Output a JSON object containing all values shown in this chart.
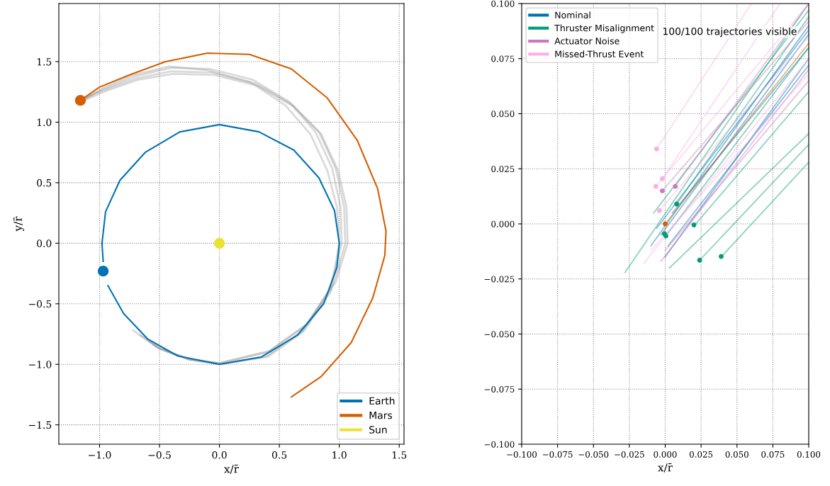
{
  "chart_data": [
    {
      "type": "line",
      "xlabel": "x/r̄",
      "ylabel": "y/r̄",
      "grid": true,
      "legend": "bottom right",
      "xlim": [
        -1.34,
        1.54
      ],
      "ylim": [
        -1.66,
        1.98
      ],
      "xticks": [
        {
          "value": -1.0,
          "label": "−1.0"
        },
        {
          "value": -0.5,
          "label": "−0.5"
        },
        {
          "value": 0.0,
          "label": "0.0"
        },
        {
          "value": 0.5,
          "label": "0.5"
        },
        {
          "value": 1.0,
          "label": "1.0"
        },
        {
          "value": 1.5,
          "label": "1.5"
        }
      ],
      "yticks": [
        {
          "value": -1.5,
          "label": "−1.5"
        },
        {
          "value": -1.0,
          "label": "−1.0"
        },
        {
          "value": -0.5,
          "label": "−0.5"
        },
        {
          "value": 0.0,
          "label": "0.0"
        },
        {
          "value": 0.5,
          "label": "0.5"
        },
        {
          "value": 1.0,
          "label": "1.0"
        },
        {
          "value": 1.5,
          "label": "1.5"
        }
      ],
      "series": [
        {
          "color": "#949494",
          "x": [
            -0.72,
            -0.5,
            -0.25,
            0.0,
            0.4,
            0.7,
            0.92,
            1.02,
            1.01,
            0.94,
            0.8,
            0.58,
            0.28,
            -0.08,
            -0.4,
            -0.7,
            -0.95,
            -1.14
          ],
          "values": [
            -0.72,
            -0.87,
            -0.96,
            -1.0,
            -0.93,
            -0.72,
            -0.38,
            0.0,
            0.3,
            0.62,
            0.92,
            1.17,
            1.35,
            1.44,
            1.45,
            1.38,
            1.28,
            1.19
          ]
        },
        {
          "color": "#949494",
          "x": [
            -0.6,
            -0.5,
            -0.25,
            0.0,
            0.4,
            0.72,
            0.95,
            1.05,
            1.04,
            0.97,
            0.83,
            0.6,
            0.3,
            -0.06,
            -0.4,
            -0.7,
            -0.95,
            -1.12
          ],
          "values": [
            -0.8,
            -0.87,
            -0.96,
            -0.99,
            -0.9,
            -0.68,
            -0.34,
            0.0,
            0.3,
            0.62,
            0.92,
            1.15,
            1.32,
            1.41,
            1.42,
            1.36,
            1.27,
            1.2
          ]
        },
        {
          "color": "#949494",
          "x": [
            -0.66,
            -0.5,
            -0.25,
            0.0,
            0.4,
            0.7,
            0.93,
            1.0,
            0.98,
            0.9,
            0.76,
            0.55,
            0.26,
            -0.1,
            -0.42,
            -0.72,
            -0.96,
            -1.15
          ],
          "values": [
            -0.76,
            -0.87,
            -0.96,
            -1.0,
            -0.94,
            -0.73,
            -0.4,
            0.0,
            0.3,
            0.6,
            0.9,
            1.14,
            1.33,
            1.43,
            1.46,
            1.39,
            1.29,
            1.17
          ]
        },
        {
          "color": "#949494",
          "x": [
            -0.55,
            -0.45,
            -0.25,
            0.0,
            0.42,
            0.74,
            0.97,
            1.07,
            1.06,
            0.99,
            0.85,
            0.62,
            0.32,
            -0.04,
            -0.38,
            -0.68,
            -0.94,
            -1.13
          ],
          "values": [
            -0.84,
            -0.89,
            -0.96,
            -0.99,
            -0.89,
            -0.66,
            -0.32,
            0.0,
            0.3,
            0.6,
            0.9,
            1.13,
            1.3,
            1.39,
            1.4,
            1.35,
            1.26,
            1.18
          ]
        },
        {
          "name": "Earth",
          "color": "#0173b2",
          "x": [
            -0.93,
            -0.8,
            -0.6,
            -0.35,
            0.0,
            0.35,
            0.65,
            0.87,
            0.98,
            1.0,
            0.96,
            0.83,
            0.62,
            0.33,
            0.0,
            -0.33,
            -0.62,
            -0.83,
            -0.95,
            -0.98,
            -0.97
          ],
          "values": [
            -0.35,
            -0.58,
            -0.79,
            -0.93,
            -1.0,
            -0.94,
            -0.76,
            -0.5,
            -0.2,
            0.0,
            0.27,
            0.54,
            0.77,
            0.92,
            0.98,
            0.92,
            0.75,
            0.52,
            0.26,
            0.0,
            -0.15
          ]
        },
        {
          "name": "Mars",
          "color": "#d55e00",
          "x": [
            0.6,
            0.85,
            1.1,
            1.28,
            1.38,
            1.39,
            1.32,
            1.15,
            0.9,
            0.6,
            0.25,
            -0.1,
            -0.45,
            -0.75,
            -1.0,
            -1.16
          ],
          "values": [
            -1.27,
            -1.1,
            -0.82,
            -0.45,
            -0.1,
            0.1,
            0.45,
            0.85,
            1.2,
            1.44,
            1.56,
            1.57,
            1.5,
            1.39,
            1.29,
            1.18
          ]
        },
        {
          "type": "scatter",
          "name": "Sun",
          "color": "#ece133",
          "x": [
            0.0
          ],
          "values": [
            0.0
          ]
        },
        {
          "type": "scatter",
          "color": "#0173b2",
          "x": [
            -0.97
          ],
          "values": [
            -0.23
          ]
        },
        {
          "type": "scatter",
          "color": "#d55e00",
          "x": [
            -1.16
          ],
          "values": [
            1.18
          ]
        }
      ]
    },
    {
      "type": "line",
      "xlabel": "x/r̄",
      "grid": true,
      "legend": "top left",
      "annotations": [
        "100/100 trajectories visible"
      ],
      "xlim": [
        -0.1,
        0.1
      ],
      "ylim": [
        -0.1,
        0.1
      ],
      "xticks": [
        {
          "value": -0.1,
          "label": "−0.100"
        },
        {
          "value": -0.075,
          "label": "−0.075"
        },
        {
          "value": -0.05,
          "label": "−0.050"
        },
        {
          "value": -0.025,
          "label": "−0.025"
        },
        {
          "value": 0.0,
          "label": "0.000"
        },
        {
          "value": 0.025,
          "label": "0.025"
        },
        {
          "value": 0.05,
          "label": "0.050"
        },
        {
          "value": 0.075,
          "label": "0.075"
        },
        {
          "value": 0.1,
          "label": "0.100"
        }
      ],
      "yticks": [
        {
          "value": -0.1,
          "label": "−0.100"
        },
        {
          "value": -0.075,
          "label": "−0.075"
        },
        {
          "value": -0.05,
          "label": "−0.050"
        },
        {
          "value": -0.025,
          "label": "−0.025"
        },
        {
          "value": 0.0,
          "label": "0.000"
        },
        {
          "value": 0.025,
          "label": "0.025"
        },
        {
          "value": 0.05,
          "label": "0.050"
        },
        {
          "value": 0.075,
          "label": "0.075"
        },
        {
          "value": 0.1,
          "label": "0.100"
        }
      ],
      "series": [
        {
          "name": "Nominal",
          "color": "#0173b2",
          "x": [
            -0.003,
            0.1
          ],
          "values": [
            -0.005,
            0.086
          ]
        },
        {
          "color": "#0173b2",
          "x": [
            -0.01,
            0.1
          ],
          "values": [
            -0.01,
            0.09
          ]
        },
        {
          "color": "#0173b2",
          "x": [
            0.0,
            0.1
          ],
          "values": [
            -0.015,
            0.075
          ]
        },
        {
          "color": "#0173b2",
          "x": [
            0.005,
            0.1
          ],
          "values": [
            0.005,
            0.08
          ]
        },
        {
          "color": "#0173b2",
          "x": [
            -0.006,
            0.1
          ],
          "values": [
            -0.002,
            0.088
          ]
        },
        {
          "color": "#0173b2",
          "x": [
            0.002,
            0.1
          ],
          "values": [
            -0.01,
            0.072
          ]
        },
        {
          "name": "Thruster Misalignment",
          "color": "#029e73",
          "x": [
            -0.028,
            0.1
          ],
          "values": [
            -0.022,
            0.1
          ]
        },
        {
          "color": "#029e73",
          "x": [
            0.039,
            0.1
          ],
          "values": [
            -0.015,
            0.028
          ]
        },
        {
          "color": "#029e73",
          "x": [
            0.024,
            0.1
          ],
          "values": [
            -0.0165,
            0.036
          ]
        },
        {
          "color": "#029e73",
          "x": [
            0.02,
            0.1
          ],
          "values": [
            -0.001,
            0.06
          ]
        },
        {
          "color": "#029e73",
          "x": [
            0.008,
            0.1
          ],
          "values": [
            0.009,
            0.094
          ]
        },
        {
          "color": "#029e73",
          "x": [
            0.001,
            0.1
          ],
          "values": [
            -0.005,
            0.08
          ]
        },
        {
          "color": "#029e73",
          "x": [
            0.003,
            0.1
          ],
          "values": [
            -0.02,
            0.041
          ]
        },
        {
          "color": "#029e73",
          "x": [
            -0.008,
            0.1
          ],
          "values": [
            0.005,
            0.097
          ]
        },
        {
          "name": "Actuator Noise",
          "color": "#cc78bc",
          "x": [
            -0.003,
            0.1
          ],
          "values": [
            -0.017,
            0.07
          ]
        },
        {
          "color": "#cc78bc",
          "x": [
            -0.002,
            0.1
          ],
          "values": [
            0.015,
            0.092
          ]
        },
        {
          "color": "#cc78bc",
          "x": [
            0.0,
            0.1
          ],
          "values": [
            -0.012,
            0.065
          ]
        },
        {
          "color": "#cc78bc",
          "x": [
            0.007,
            0.1
          ],
          "values": [
            0.017,
            0.1
          ]
        },
        {
          "name": "Missed-Thrust Event",
          "color": "#fbafe4",
          "x": [
            -0.006,
            0.06
          ],
          "values": [
            0.034,
            0.1
          ]
        },
        {
          "color": "#fbafe4",
          "x": [
            -0.002,
            0.08
          ],
          "values": [
            0.0205,
            0.1
          ]
        },
        {
          "color": "#fbafe4",
          "x": [
            -0.0065,
            0.1
          ],
          "values": [
            0.017,
            0.1
          ]
        },
        {
          "color": "#fbafe4",
          "x": [
            -0.004,
            0.1
          ],
          "values": [
            0.006,
            0.085
          ]
        },
        {
          "color": "#fbafe4",
          "x": [
            -0.015,
            0.1
          ],
          "values": [
            -0.018,
            0.075
          ]
        },
        {
          "color": "#fbafe4",
          "x": [
            -0.01,
            0.1
          ],
          "values": [
            -0.012,
            0.068
          ]
        },
        {
          "color": "#d55e00",
          "x": [
            0.0,
            0.1
          ],
          "values": [
            0.0,
            0.082
          ]
        },
        {
          "type": "scatter",
          "color": "#fbafe4",
          "x": [
            -0.006,
            -0.002,
            -0.0065,
            -0.004
          ],
          "values": [
            0.034,
            0.0205,
            0.017,
            0.006
          ]
        },
        {
          "type": "scatter",
          "color": "#029e73",
          "x": [
            0.008,
            0.02,
            0.024,
            0.039,
            -0.0005,
            0.0005
          ],
          "values": [
            0.009,
            -0.0005,
            -0.0165,
            -0.0148,
            -0.0045,
            -0.0055
          ]
        },
        {
          "type": "scatter",
          "color": "#cc78bc",
          "x": [
            -0.002,
            0.007
          ],
          "values": [
            0.015,
            0.017
          ]
        },
        {
          "type": "scatter",
          "color": "#d55e00",
          "x": [
            0.0
          ],
          "values": [
            0.0
          ]
        }
      ]
    }
  ]
}
